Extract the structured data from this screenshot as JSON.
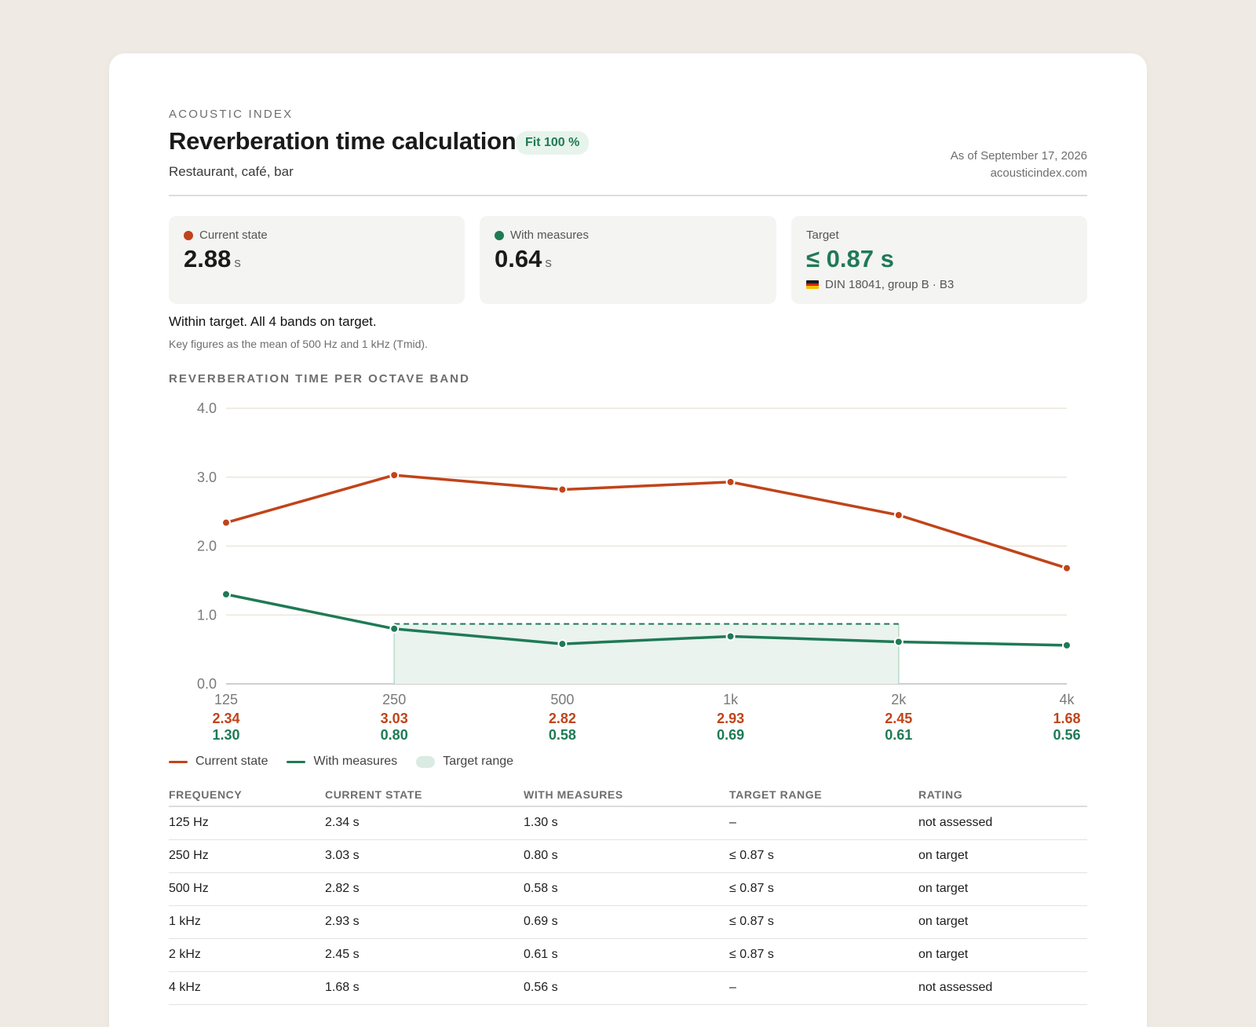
{
  "header": {
    "eyebrow": "ACOUSTIC INDEX",
    "title": "Reverberation time calculation",
    "fit_badge": "Fit 100 %",
    "subtitle": "Restaurant, café, bar",
    "as_of": "As of September 17, 2026",
    "site": "acousticindex.com"
  },
  "kpis": {
    "current": {
      "label": "Current state",
      "value": "2.88",
      "unit": "s",
      "color": "#c0441a"
    },
    "with_measures": {
      "label": "With measures",
      "value": "0.64",
      "unit": "s",
      "color": "#1f7a55"
    },
    "target": {
      "label": "Target",
      "value": "≤ 0.87 s",
      "norm": "DIN 18041, group B · B3",
      "flag_icon": "germany-flag-icon"
    }
  },
  "status": {
    "line": "Within target. All 4 bands on target.",
    "note": "Key figures as the mean of 500 Hz and 1 kHz (Tmid)."
  },
  "chart_section_title": "REVERBERATION TIME PER OCTAVE BAND",
  "chart_data": {
    "type": "line",
    "categories": [
      "125",
      "250",
      "500",
      "1k",
      "2k",
      "4k"
    ],
    "series": [
      {
        "name": "Current state",
        "color": "#c0441a",
        "values": [
          2.34,
          3.03,
          2.82,
          2.93,
          2.45,
          1.68
        ],
        "labels": [
          "2.34",
          "3.03",
          "2.82",
          "2.93",
          "2.45",
          "1.68"
        ]
      },
      {
        "name": "With measures",
        "color": "#1f7a55",
        "values": [
          1.3,
          0.8,
          0.58,
          0.69,
          0.61,
          0.56
        ],
        "labels": [
          "1.30",
          "0.80",
          "0.58",
          "0.69",
          "0.61",
          "0.56"
        ]
      }
    ],
    "target_range": {
      "name": "Target range",
      "from_category": "250",
      "to_category": "2k",
      "max": 0.87,
      "color": "#d9ebe3"
    },
    "yticks": [
      "0.0",
      "1.0",
      "2.0",
      "3.0",
      "4.0"
    ],
    "ylim": [
      0,
      4
    ],
    "grid": true,
    "legend": "bottom-left"
  },
  "legend": {
    "current": "Current state",
    "with_measures": "With measures",
    "target_range": "Target range"
  },
  "table": {
    "headers": [
      "FREQUENCY",
      "CURRENT STATE",
      "WITH MEASURES",
      "TARGET RANGE",
      "RATING"
    ],
    "rows": [
      {
        "freq": "125 Hz",
        "current": "2.34 s",
        "with": "1.30 s",
        "target": "–",
        "rating": "not assessed",
        "ok": false
      },
      {
        "freq": "250 Hz",
        "current": "3.03 s",
        "with": "0.80 s",
        "target": "≤ 0.87 s",
        "rating": "on target",
        "ok": true
      },
      {
        "freq": "500 Hz",
        "current": "2.82 s",
        "with": "0.58 s",
        "target": "≤ 0.87 s",
        "rating": "on target",
        "ok": true
      },
      {
        "freq": "1 kHz",
        "current": "2.93 s",
        "with": "0.69 s",
        "target": "≤ 0.87 s",
        "rating": "on target",
        "ok": true
      },
      {
        "freq": "2 kHz",
        "current": "2.45 s",
        "with": "0.61 s",
        "target": "≤ 0.87 s",
        "rating": "on target",
        "ok": true
      },
      {
        "freq": "4 kHz",
        "current": "1.68 s",
        "with": "0.56 s",
        "target": "–",
        "rating": "not assessed",
        "ok": false
      }
    ]
  }
}
